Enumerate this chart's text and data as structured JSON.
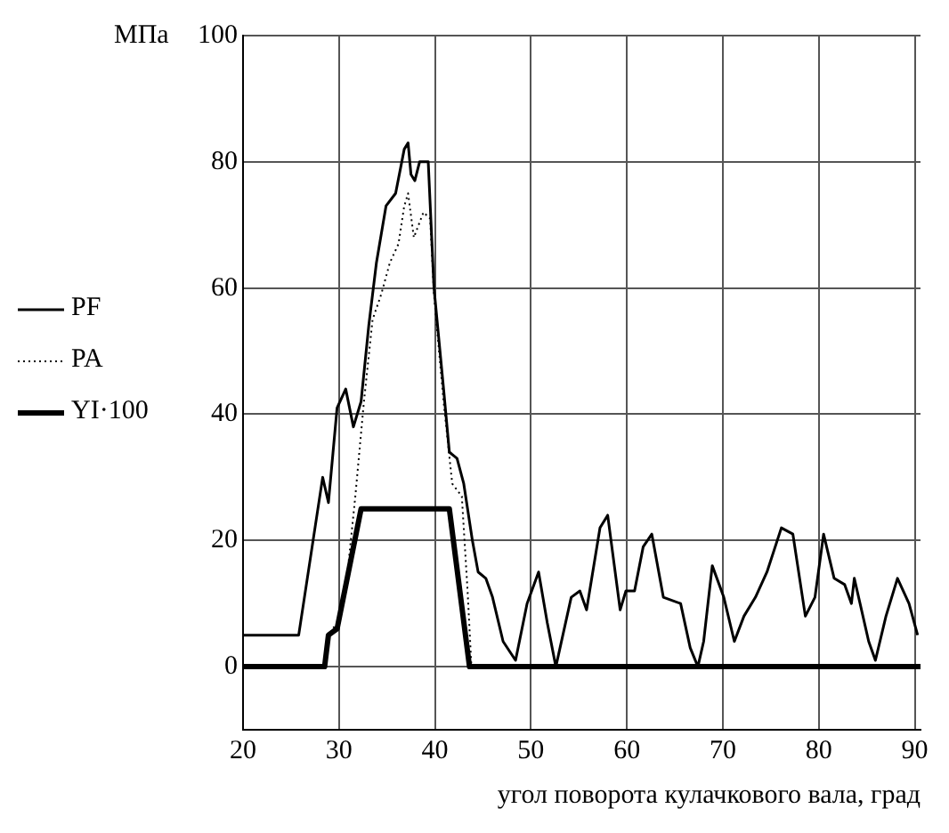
{
  "chart_data": {
    "type": "line",
    "ylabel": "МПа",
    "xlabel": "угол поворота кулачкового вала, град",
    "xlim": [
      20,
      90.6
    ],
    "xticks": [
      20,
      30,
      40,
      50,
      60,
      70,
      80,
      90
    ],
    "ylim": [
      -10,
      100
    ],
    "yticks": [
      {
        "value": -10,
        "label": null
      },
      0,
      20,
      40,
      60,
      80,
      100
    ],
    "grid": true,
    "legend": "left",
    "marker": "none",
    "series": [
      {
        "name": "PF",
        "color": "#000000",
        "line_style": "solid",
        "x": [
          20,
          25.8,
          28.3,
          28.9,
          29.8,
          30.7,
          31.5,
          32.3,
          33.1,
          33.9,
          34.9,
          35.9,
          36.8,
          37.2,
          37.5,
          37.9,
          38.4,
          39.3,
          39.9,
          40.9,
          41.5,
          42.3,
          43,
          43.9,
          44.5,
          45.3,
          46,
          47.1,
          48.4,
          49.6,
          50.8,
          51.7,
          52.6,
          54.2,
          55.1,
          55.8,
          57.2,
          58,
          59.3,
          59.9,
          60.8,
          61.7,
          62.6,
          63.8,
          65.6,
          66.6,
          67.4,
          68,
          68.9,
          70.1,
          71.2,
          72.2,
          73.4,
          74.6,
          76.1,
          77.3,
          78.6,
          79.6,
          80.5,
          81.6,
          82.7,
          83.4,
          83.7,
          84.3,
          85.2,
          85.9,
          87,
          88.2,
          89.4,
          90.3
        ],
        "values": [
          5,
          5,
          30,
          26,
          41,
          44,
          38,
          42,
          54,
          64,
          73,
          75,
          82,
          83,
          78,
          77,
          80,
          80,
          60,
          44,
          34,
          33,
          29,
          20,
          15,
          14,
          11,
          4,
          1,
          10,
          15,
          7,
          0,
          11,
          12,
          9,
          22,
          24,
          9,
          12,
          12,
          19,
          21,
          11,
          10,
          3,
          0,
          4,
          16,
          11,
          4,
          8,
          11,
          15,
          22,
          21,
          8,
          11,
          21,
          14,
          13,
          10,
          14,
          10,
          4,
          1,
          8,
          14,
          10,
          5
        ]
      },
      {
        "name": "PA",
        "color": "#000000",
        "line_style": "dotted",
        "x": [
          20,
          28.6,
          28.9,
          29.8,
          30.7,
          31.7,
          32.6,
          33.5,
          34.4,
          35.3,
          36.2,
          36.8,
          37.2,
          37.8,
          38.8,
          39.5,
          39.9,
          40.9,
          41.8,
          42.8,
          43.4,
          43.8,
          90.6
        ],
        "values": [
          0,
          0,
          5,
          7,
          12,
          27,
          42,
          55,
          59,
          64,
          67,
          73,
          75,
          68,
          72,
          71,
          59,
          42,
          29,
          27,
          12,
          0,
          0
        ]
      },
      {
        "name": "YI·100",
        "color": "#000000",
        "line_style": "solid",
        "x": [
          20,
          28.5,
          28.9,
          29.8,
          32.3,
          41.5,
          43.6,
          90.6
        ],
        "values": [
          0,
          0,
          5,
          6,
          25,
          25,
          0,
          0
        ]
      }
    ]
  }
}
